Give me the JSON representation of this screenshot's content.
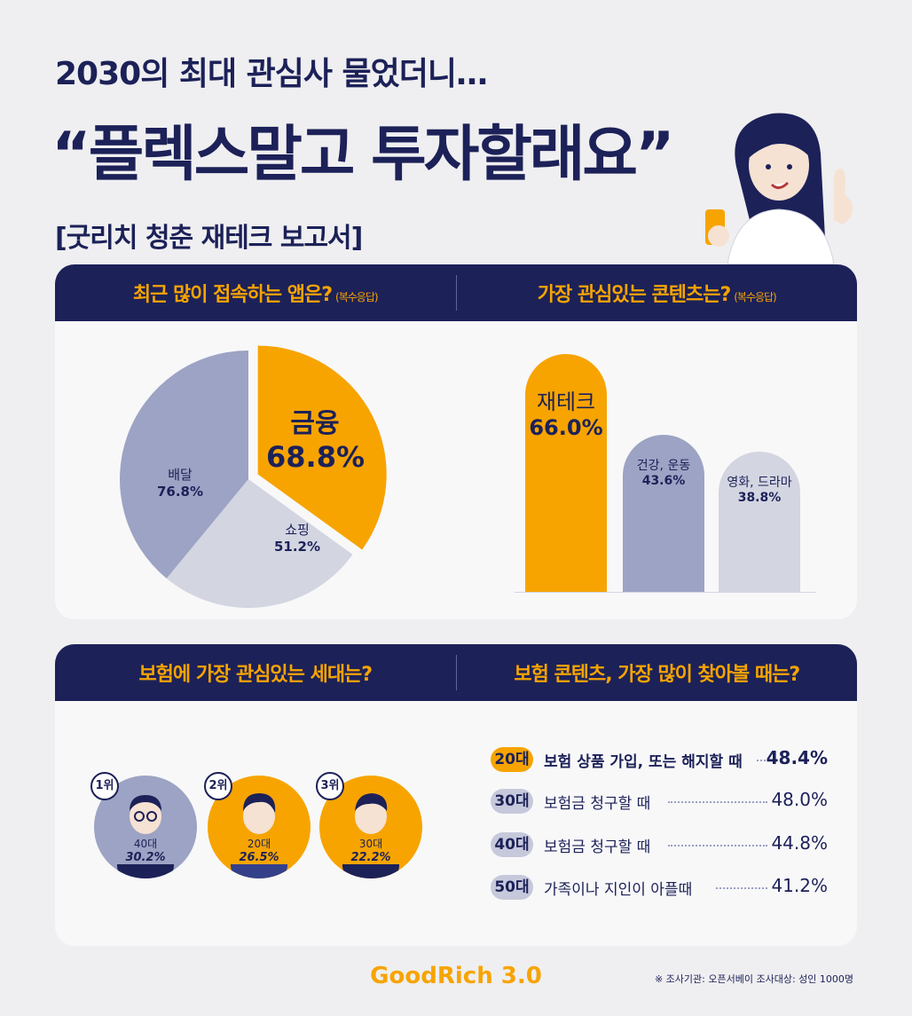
{
  "page": {
    "subtitle": "2030의 최대 관심사 물었더니…",
    "title": "“플렉스말고 투자할래요”",
    "report_title": "[굿리치 청춘 재테크 보고서]",
    "brand": "GoodRich 3.0",
    "source": "※ 조사기관: 오픈서베이  조사대상: 성인 1000명"
  },
  "colors": {
    "navy": "#1c2158",
    "orange": "#f7a400",
    "slate": "#9ca3c4",
    "light": "#d3d5e1"
  },
  "sections": {
    "apps": {
      "title": "최근 많이 접속하는 앱은?",
      "note": "(복수응답)"
    },
    "contents": {
      "title": "가장 관심있는 콘텐츠는?",
      "note": "(복수응답)"
    },
    "insurance_gen": {
      "title": "보험에 가장 관심있는 세대는?"
    },
    "insurance_when": {
      "title": "보험 콘텐츠, 가장 많이 찾아볼 때는?"
    }
  },
  "chart_data": [
    {
      "type": "pie",
      "title": "최근 많이 접속하는 앱은?",
      "labels": [
        "금융",
        "쇼핑",
        "배달"
      ],
      "values": [
        68.8,
        51.2,
        76.8
      ],
      "display": [
        "68.8%",
        "51.2%",
        "76.8%"
      ],
      "colors": [
        "#f7a400",
        "#d3d5e1",
        "#9ca3c4"
      ]
    },
    {
      "type": "bar",
      "title": "가장 관심있는 콘텐츠는?",
      "categories": [
        "재테크",
        "건강, 운동",
        "영화, 드라마"
      ],
      "values": [
        66.0,
        43.6,
        38.8
      ],
      "display": [
        "66.0%",
        "43.6%",
        "38.8%"
      ],
      "colors": [
        "#f7a400",
        "#9ca3c4",
        "#d3d5e1"
      ]
    },
    {
      "type": "table",
      "title": "보험에 가장 관심있는 세대는?",
      "rows": [
        {
          "rank": "1위",
          "age": "40대",
          "value": "30.2%"
        },
        {
          "rank": "2위",
          "age": "20대",
          "value": "26.5%"
        },
        {
          "rank": "3위",
          "age": "30대",
          "value": "22.2%"
        }
      ]
    },
    {
      "type": "table",
      "title": "보험 콘텐츠, 가장 많이 찾아볼 때는?",
      "rows": [
        {
          "age": "20대",
          "text": "보험 상품 가입, 또는 해지할 때",
          "value": "48.4%"
        },
        {
          "age": "30대",
          "text": "보험금 청구할 때",
          "value": "48.0%"
        },
        {
          "age": "40대",
          "text": "보험금 청구할 때",
          "value": "44.8%"
        },
        {
          "age": "50대",
          "text": "가족이나 지인이 아플때",
          "value": "41.2%"
        }
      ]
    }
  ]
}
